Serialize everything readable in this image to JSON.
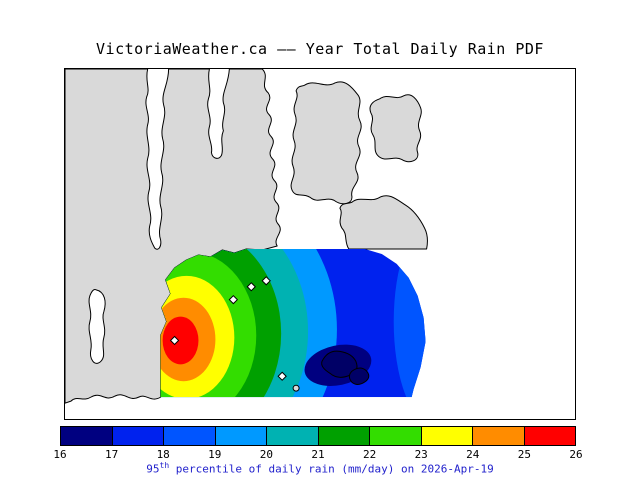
{
  "title": "VictoriaWeather.ca —— Year Total Daily Rain PDF",
  "caption": {
    "prefix": "95",
    "superscript": "th",
    "suffix": " percentile of daily rain (mm/day) on 2026-Apr-19",
    "color": "#2222cc"
  },
  "colorbar": {
    "ticks": [
      "16",
      "17",
      "18",
      "19",
      "20",
      "21",
      "22",
      "23",
      "24",
      "25",
      "26"
    ],
    "colors": [
      "#000080",
      "#0022ee",
      "#0055ff",
      "#0099ff",
      "#00b2b2",
      "#00a000",
      "#33dd00",
      "#ffff00",
      "#ff8c00",
      "#ff0000"
    ]
  },
  "map": {
    "land_color": "#d9d9d9",
    "water_color": "#ffffff",
    "frame_color": "#000000"
  },
  "chart_data": {
    "type": "heatmap",
    "subtype": "filled-contour-weather-map",
    "title": "VictoriaWeather.ca —— Year Total Daily Rain PDF",
    "variable": "95th percentile of daily rain",
    "units": "mm/day",
    "date": "2026-Apr-19",
    "legend_position": "bottom",
    "levels": [
      16,
      17,
      18,
      19,
      20,
      21,
      22,
      23,
      24,
      25,
      26
    ],
    "level_colors": [
      "#000080",
      "#0022ee",
      "#0055ff",
      "#0099ff",
      "#00b2b2",
      "#00a000",
      "#33dd00",
      "#ffff00",
      "#ff8c00",
      "#ff0000"
    ],
    "value_range": [
      16,
      26
    ],
    "features": [
      {
        "feature": "maximum",
        "approx_value": "25-26 mm/day",
        "map_location": "west edge of analysis domain, against coastline"
      },
      {
        "feature": "minimum",
        "approx_value": "16-17 mm/day",
        "map_location": "dark navy pocket, south-central offshore area"
      },
      {
        "feature": "gradient",
        "description": "values decrease eastward from red core (~26) through orange/yellow/green/cyan bands to broad blue area (~17-18)"
      }
    ],
    "stations": [
      [
        174,
        341
      ],
      [
        233,
        300
      ],
      [
        251,
        287
      ],
      [
        266,
        281
      ],
      [
        282,
        377
      ]
    ]
  }
}
